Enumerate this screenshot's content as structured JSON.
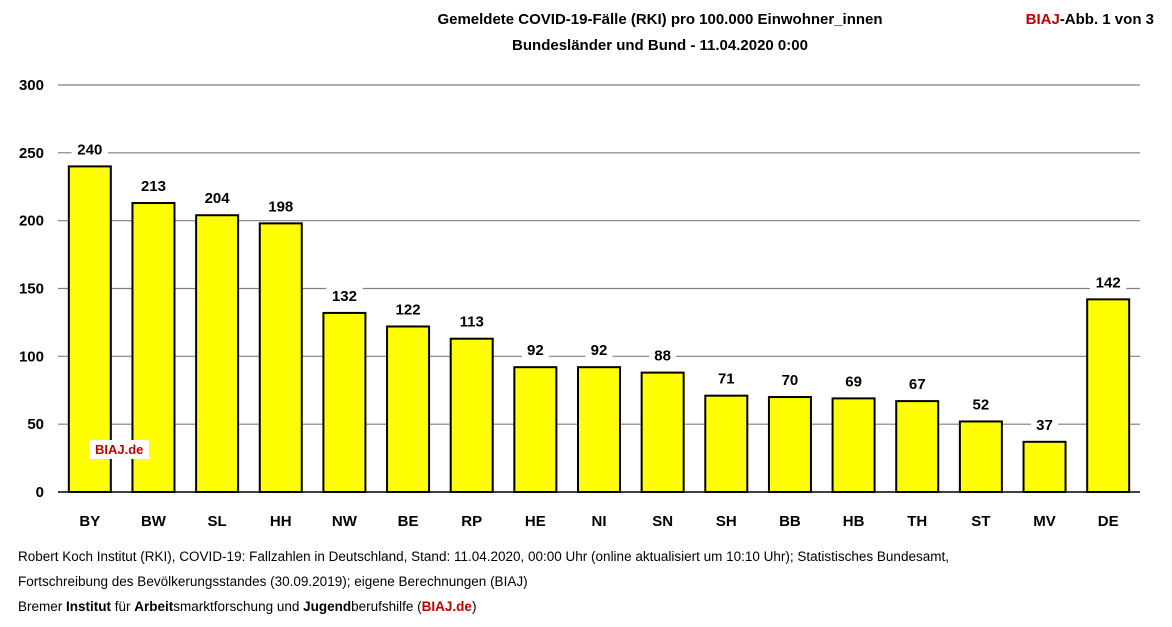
{
  "header": {
    "title_line1": "Gemeldete COVID-19-Fälle (RKI) pro 100.000 Einwohner_innen",
    "title_line2": "Bundesländer und Bund - 11.04.2020 0:00",
    "figref_brand": "BIAJ",
    "figref_rest": "-Abb. 1 von 3"
  },
  "watermark": "BIAJ.de",
  "footer": {
    "line1": "Robert Koch Institut (RKI), COVID-19: Fallzahlen in Deutschland, Stand: 11.04.2020, 00:00 Uhr (online aktualisiert um 10:10 Uhr); Statistisches Bundesamt,",
    "line2": "Fortschreibung des Bevölkerungsstandes (30.09.2019); eigene Berechnungen (BIAJ)",
    "line3": {
      "p1": "Bremer ",
      "b1": "Institut",
      "p2": " für ",
      "b2": "Arbeit",
      "p3": "smarktforschung und ",
      "b3": "Jugend",
      "p4": "berufshilfe (",
      "b4": "BIAJ.de",
      "p5": ")"
    }
  },
  "colors": {
    "bar": "#ffff00",
    "bar_stroke": "#000000",
    "grid": "#7f7f7f",
    "brand": "#c00000"
  },
  "chart_data": {
    "type": "bar",
    "title": "Gemeldete COVID-19-Fälle (RKI) pro 100.000 Einwohner_innen",
    "subtitle": "Bundesländer und Bund - 11.04.2020 0:00",
    "categories": [
      "BY",
      "BW",
      "SL",
      "HH",
      "NW",
      "BE",
      "RP",
      "HE",
      "NI",
      "SN",
      "SH",
      "BB",
      "HB",
      "TH",
      "ST",
      "MV",
      "DE"
    ],
    "values": [
      240,
      213,
      204,
      198,
      132,
      122,
      113,
      92,
      92,
      88,
      71,
      70,
      69,
      67,
      52,
      37,
      142
    ],
    "ylim": [
      0,
      300
    ],
    "yticks": [
      0,
      50,
      100,
      150,
      200,
      250,
      300
    ],
    "grid": true,
    "legend": "none",
    "data_labels": true
  }
}
